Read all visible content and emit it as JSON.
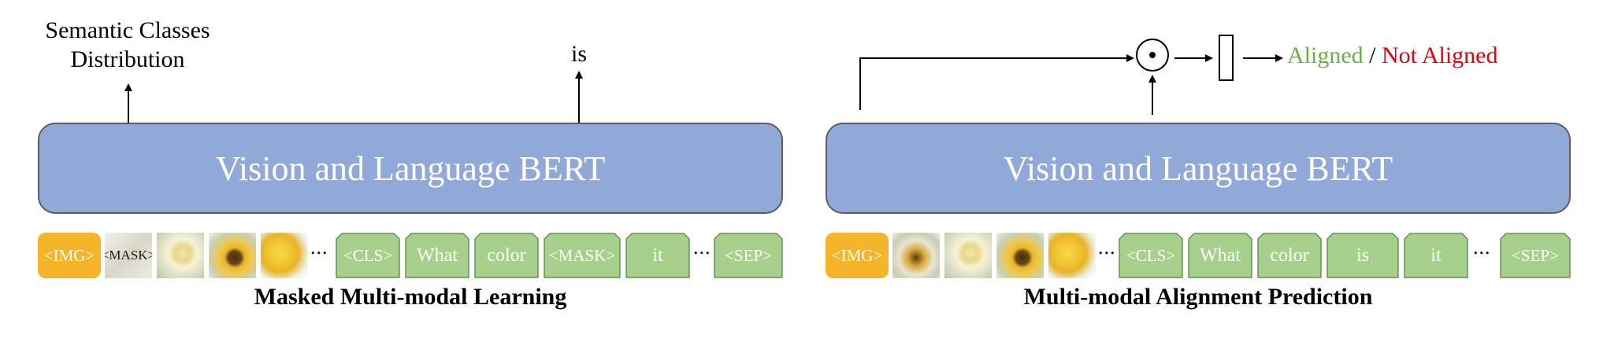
{
  "left": {
    "output_classes": "Semantic Classes Distribution",
    "output_word": "is",
    "bert_label": "Vision and Language BERT",
    "img_token": "<IMG>",
    "mask_patch_label": "<MASK>",
    "text_tokens": [
      "<CLS>",
      "What",
      "color",
      "<MASK>",
      "it"
    ],
    "sep_token": "<SEP>",
    "ellipsis": "...",
    "caption": "Masked Multi-modal Learning"
  },
  "right": {
    "bert_label": "Vision and Language BERT",
    "img_token": "<IMG>",
    "text_tokens": [
      "<CLS>",
      "What",
      "color",
      "is",
      "it"
    ],
    "sep_token": "<SEP>",
    "ellipsis": "...",
    "caption": "Multi-modal Alignment Prediction",
    "aligned_label": "Aligned",
    "separator": "/",
    "not_aligned_label": "Not Aligned"
  },
  "colors": {
    "bert_fill": "#91a9d9",
    "img_token_fill": "#f6b428",
    "text_token_fill": "#a8d08d",
    "aligned": "#70ad47",
    "not_aligned": "#e3000f"
  }
}
